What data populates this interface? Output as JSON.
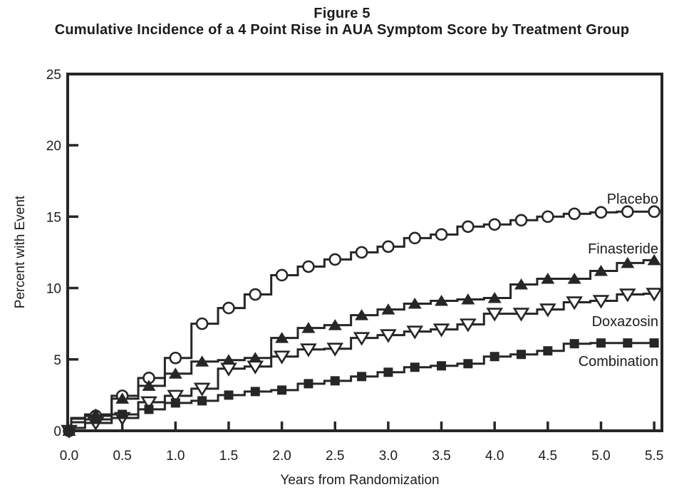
{
  "colors": {
    "ink": "#262626",
    "background": "#ffffff"
  },
  "chart_data": {
    "type": "line",
    "style": "step",
    "title": "Figure 5",
    "subtitle": "Cumulative Incidence of a 4 Point Rise in AUA Symptom Score by Treatment Group",
    "xlabel": "Years from Randomization",
    "ylabel": "Percent with Event",
    "xlim": [
      0,
      5.5
    ],
    "ylim": [
      0,
      25
    ],
    "xticks": [
      0,
      0.5,
      1.0,
      1.5,
      2.0,
      2.5,
      3.0,
      3.5,
      4.0,
      4.5,
      5.0,
      5.5
    ],
    "xtick_labels": [
      "0.0",
      "0.5",
      "1.0",
      "1.5",
      "2.0",
      "2.5",
      "3.0",
      "3.5",
      "4.0",
      "4.5",
      "5.0",
      "5.5"
    ],
    "yticks": [
      0,
      5,
      10,
      15,
      20,
      25
    ],
    "ytick_labels": [
      "0",
      "5",
      "10",
      "15",
      "20",
      "25"
    ],
    "grid": false,
    "legend_position": "right-of-line labels",
    "series": [
      {
        "name": "Placebo",
        "marker": "open-circle",
        "label_anchor": {
          "t": 5.53,
          "v": 15.9
        },
        "points": [
          [
            0,
            0
          ],
          [
            0.08,
            0.9
          ],
          [
            0.25,
            1.05
          ],
          [
            0.5,
            2.45
          ],
          [
            0.75,
            3.7
          ],
          [
            1.0,
            5.1
          ],
          [
            1.25,
            7.5
          ],
          [
            1.5,
            8.6
          ],
          [
            1.75,
            9.55
          ],
          [
            2.0,
            10.9
          ],
          [
            2.25,
            11.5
          ],
          [
            2.5,
            12.0
          ],
          [
            2.75,
            12.5
          ],
          [
            3.0,
            12.9
          ],
          [
            3.25,
            13.5
          ],
          [
            3.5,
            13.75
          ],
          [
            3.75,
            14.3
          ],
          [
            4.0,
            14.45
          ],
          [
            4.25,
            14.75
          ],
          [
            4.5,
            15.0
          ],
          [
            4.75,
            15.2
          ],
          [
            5.0,
            15.3
          ],
          [
            5.25,
            15.35
          ],
          [
            5.5,
            15.35
          ]
        ]
      },
      {
        "name": "Finasteride",
        "marker": "filled-triangle-up",
        "label_anchor": {
          "t": 5.53,
          "v": 12.4
        },
        "points": [
          [
            0,
            0
          ],
          [
            0.08,
            0.85
          ],
          [
            0.25,
            1.15
          ],
          [
            0.5,
            2.25
          ],
          [
            0.75,
            3.15
          ],
          [
            1.0,
            4.0
          ],
          [
            1.25,
            4.85
          ],
          [
            1.5,
            4.95
          ],
          [
            1.75,
            5.1
          ],
          [
            2.0,
            6.5
          ],
          [
            2.25,
            7.2
          ],
          [
            2.5,
            7.4
          ],
          [
            2.75,
            8.1
          ],
          [
            3.0,
            8.5
          ],
          [
            3.25,
            8.9
          ],
          [
            3.5,
            9.1
          ],
          [
            3.75,
            9.2
          ],
          [
            4.0,
            9.3
          ],
          [
            4.25,
            10.25
          ],
          [
            4.5,
            10.65
          ],
          [
            4.75,
            10.65
          ],
          [
            5.0,
            11.2
          ],
          [
            5.25,
            11.75
          ],
          [
            5.5,
            11.95
          ]
        ]
      },
      {
        "name": "Doxazosin",
        "marker": "open-triangle-down",
        "label_anchor": {
          "t": 5.53,
          "v": 7.3
        },
        "points": [
          [
            0,
            0
          ],
          [
            0.08,
            0.2
          ],
          [
            0.25,
            0.55
          ],
          [
            0.5,
            0.9
          ],
          [
            0.75,
            2.0
          ],
          [
            1.0,
            2.45
          ],
          [
            1.25,
            2.95
          ],
          [
            1.5,
            4.35
          ],
          [
            1.75,
            4.5
          ],
          [
            2.0,
            5.2
          ],
          [
            2.25,
            5.7
          ],
          [
            2.5,
            5.75
          ],
          [
            2.75,
            6.5
          ],
          [
            3.0,
            6.7
          ],
          [
            3.25,
            6.95
          ],
          [
            3.5,
            7.1
          ],
          [
            3.75,
            7.45
          ],
          [
            4.0,
            8.2
          ],
          [
            4.25,
            8.2
          ],
          [
            4.5,
            8.5
          ],
          [
            4.75,
            9.0
          ],
          [
            5.0,
            9.1
          ],
          [
            5.25,
            9.55
          ],
          [
            5.5,
            9.6
          ]
        ]
      },
      {
        "name": "Combination",
        "marker": "filled-square",
        "label_anchor": {
          "t": 5.52,
          "v": 4.5
        },
        "points": [
          [
            0,
            0
          ],
          [
            0.08,
            0.6
          ],
          [
            0.25,
            0.8
          ],
          [
            0.5,
            1.15
          ],
          [
            0.75,
            1.5
          ],
          [
            1.0,
            1.95
          ],
          [
            1.25,
            2.1
          ],
          [
            1.5,
            2.5
          ],
          [
            1.75,
            2.75
          ],
          [
            2.0,
            2.85
          ],
          [
            2.25,
            3.3
          ],
          [
            2.5,
            3.5
          ],
          [
            2.75,
            3.8
          ],
          [
            3.0,
            4.1
          ],
          [
            3.25,
            4.45
          ],
          [
            3.5,
            4.55
          ],
          [
            3.75,
            4.7
          ],
          [
            4.0,
            5.2
          ],
          [
            4.25,
            5.35
          ],
          [
            4.5,
            5.6
          ],
          [
            4.75,
            6.1
          ],
          [
            5.0,
            6.15
          ],
          [
            5.25,
            6.15
          ],
          [
            5.5,
            6.15
          ]
        ]
      }
    ]
  }
}
